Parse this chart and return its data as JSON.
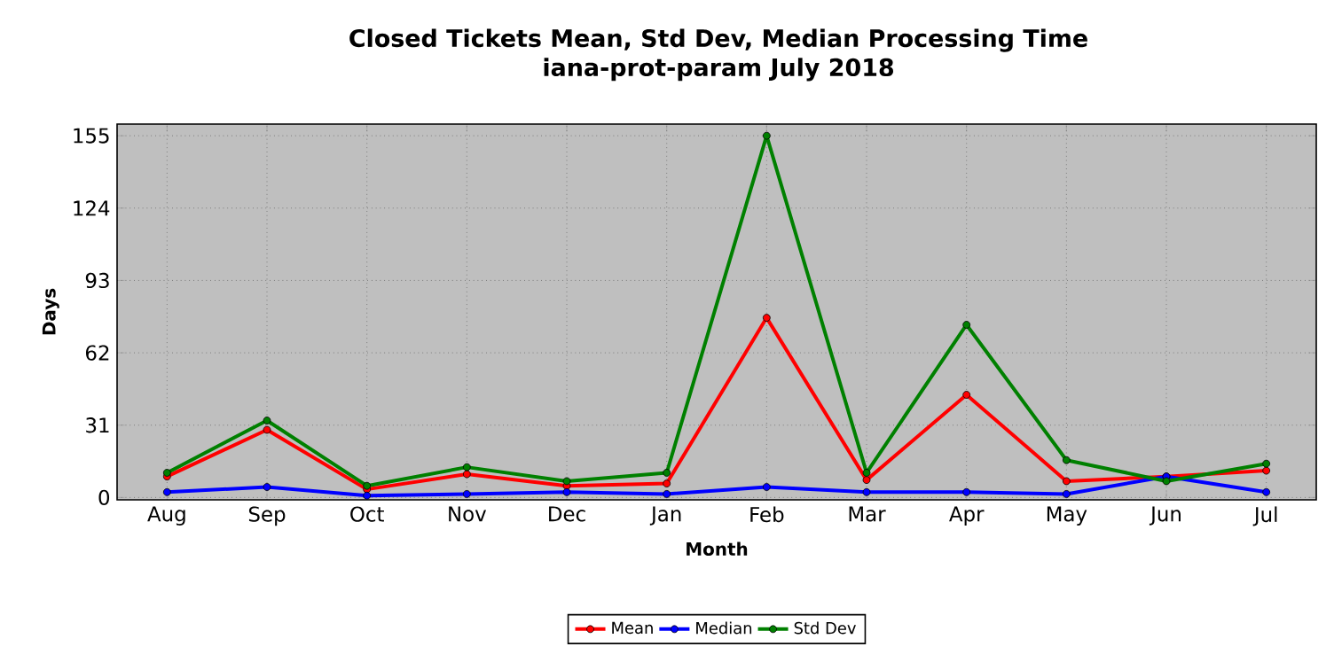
{
  "chart_data": {
    "type": "line",
    "title": "Closed Tickets Mean, Std Dev, Median Processing Time\niana-prot-param July 2018",
    "xlabel": "Month",
    "ylabel": "Days",
    "categories": [
      "Aug",
      "Sep",
      "Oct",
      "Nov",
      "Dec",
      "Jan",
      "Feb",
      "Mar",
      "Apr",
      "May",
      "Jun",
      "Jul"
    ],
    "series": [
      {
        "name": "Mean",
        "color": "#ff0000",
        "values": [
          9,
          29,
          3.5,
          10,
          5,
          6,
          77,
          7.5,
          44,
          7,
          9,
          11.5
        ]
      },
      {
        "name": "Median",
        "color": "#0000ff",
        "values": [
          2.3,
          4.5,
          0.8,
          1.5,
          2.3,
          1.5,
          4.5,
          2.3,
          2.3,
          1.5,
          9,
          2.3
        ]
      },
      {
        "name": "Std Dev",
        "color": "#008000",
        "values": [
          10.6,
          33,
          5,
          13,
          7,
          10.6,
          155,
          10.6,
          74,
          16,
          7,
          14.5
        ]
      }
    ],
    "ylim": [
      -1,
      160
    ],
    "yticks": [
      0,
      31,
      62,
      93,
      124,
      155
    ],
    "grid": true,
    "legend": "bottom",
    "marker": "circle",
    "line_style": "solid"
  }
}
